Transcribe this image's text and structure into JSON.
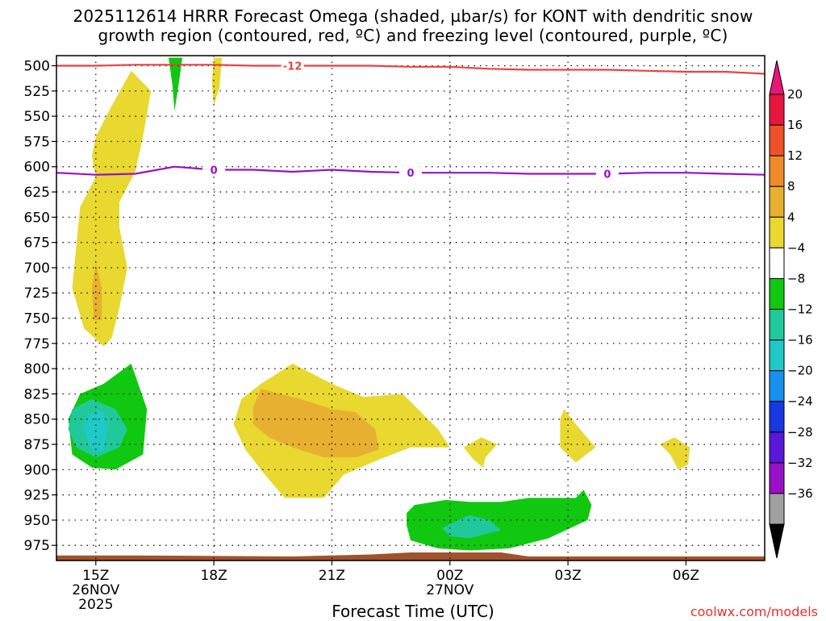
{
  "title_line1": "2025112614 HRRR Forecast Omega (shaded, µbar/s) for KONT with dendritic snow",
  "title_line2": "growth region (contoured, red, ºC) and freezing level (contoured, purple, ºC)",
  "xaxis_title": "Forecast Time (UTC)",
  "credit": "coolwx.com/models",
  "chart_data": {
    "type": "heatmap",
    "y_axis": {
      "label": "",
      "ticks": [
        500,
        525,
        550,
        575,
        600,
        625,
        650,
        675,
        700,
        725,
        750,
        775,
        800,
        825,
        850,
        875,
        900,
        925,
        950,
        975
      ],
      "range": [
        490,
        990
      ]
    },
    "x_axis": {
      "ticks": [
        {
          "hour": 0,
          "lines": [
            "15Z",
            "26NOV",
            "2025"
          ]
        },
        {
          "hour": 3,
          "lines": [
            "18Z"
          ]
        },
        {
          "hour": 6,
          "lines": [
            "21Z"
          ]
        },
        {
          "hour": 9,
          "lines": [
            "00Z",
            "27NOV"
          ]
        },
        {
          "hour": 12,
          "lines": [
            "03Z"
          ]
        },
        {
          "hour": 15,
          "lines": [
            "06Z"
          ]
        }
      ],
      "range": [
        -1.0,
        17.0
      ]
    },
    "colorbar": {
      "levels": [
        "20",
        "16",
        "12",
        "8",
        "4",
        "-4",
        "-8",
        "-12",
        "-16",
        "-20",
        "-24",
        "-28",
        "-32",
        "-36"
      ],
      "colors": [
        "#e8163c",
        "#f05028",
        "#ee8a2a",
        "#e8b030",
        "#e8d830",
        "#ffffff",
        "#10c810",
        "#20c89a",
        "#20c8c8",
        "#1890f0",
        "#1838e0",
        "#5818d8",
        "#9a10c8",
        "#a0a0a0"
      ],
      "top_arrow": "#e8167a",
      "bottom_arrow": "#000000"
    },
    "contour_dgz": {
      "label": "-12",
      "color": "#ee4040",
      "points": [
        [
          -1.0,
          500
        ],
        [
          0,
          500
        ],
        [
          1,
          499
        ],
        [
          2,
          499
        ],
        [
          3,
          499
        ],
        [
          4,
          500
        ],
        [
          5,
          500
        ],
        [
          6,
          500
        ],
        [
          7,
          500
        ],
        [
          8,
          501
        ],
        [
          9,
          501
        ],
        [
          10,
          503
        ],
        [
          11,
          504
        ],
        [
          12,
          504
        ],
        [
          13,
          504
        ],
        [
          14,
          505
        ],
        [
          15,
          506
        ],
        [
          16,
          506
        ],
        [
          17,
          508
        ]
      ]
    },
    "contour_freezing": {
      "label": "0",
      "color": "#9a10c8",
      "points": [
        [
          -1.0,
          606
        ],
        [
          0,
          608
        ],
        [
          1,
          607
        ],
        [
          2,
          600
        ],
        [
          3,
          603
        ],
        [
          4,
          603
        ],
        [
          5,
          605
        ],
        [
          6,
          603
        ],
        [
          7,
          605
        ],
        [
          8,
          606
        ],
        [
          9,
          606
        ],
        [
          10,
          606
        ],
        [
          11,
          607
        ],
        [
          12,
          607
        ],
        [
          13,
          607
        ],
        [
          14,
          606
        ],
        [
          15,
          606
        ],
        [
          16,
          607
        ],
        [
          17,
          608
        ]
      ]
    },
    "shaded_regions": [
      {
        "level": "4 to 8",
        "color": "#e8d830",
        "points": [
          [
            0.2,
            778
          ],
          [
            -0.3,
            760
          ],
          [
            -0.6,
            720
          ],
          [
            -0.5,
            680
          ],
          [
            -0.4,
            640
          ],
          [
            0.0,
            610
          ],
          [
            -0.1,
            590
          ],
          [
            0.0,
            570
          ],
          [
            0.4,
            540
          ],
          [
            0.9,
            505
          ],
          [
            1.4,
            525
          ],
          [
            1.2,
            570
          ],
          [
            1.0,
            605
          ],
          [
            0.6,
            635
          ],
          [
            0.6,
            660
          ],
          [
            0.8,
            700
          ],
          [
            0.6,
            740
          ],
          [
            0.4,
            770
          ]
        ]
      },
      {
        "level": "8 to 12",
        "color": "#e8b030",
        "points": [
          [
            -0.05,
            752
          ],
          [
            -0.1,
            720
          ],
          [
            0.0,
            695
          ],
          [
            0.15,
            720
          ],
          [
            0.15,
            752
          ]
        ]
      },
      {
        "level": "-4 to -8",
        "color": "#10c810",
        "points": [
          [
            -0.6,
            885
          ],
          [
            -0.7,
            850
          ],
          [
            -0.4,
            825
          ],
          [
            0.2,
            815
          ],
          [
            0.9,
            795
          ],
          [
            1.3,
            840
          ],
          [
            1.2,
            885
          ],
          [
            0.5,
            900
          ],
          [
            -0.1,
            898
          ]
        ]
      },
      {
        "level": "-8 to -12",
        "color": "#20c89a",
        "points": [
          [
            -0.7,
            860
          ],
          [
            -0.6,
            840
          ],
          [
            -0.1,
            830
          ],
          [
            0.5,
            840
          ],
          [
            0.8,
            860
          ],
          [
            0.6,
            878
          ],
          [
            0.0,
            888
          ],
          [
            -0.5,
            878
          ]
        ]
      },
      {
        "level": "-12 to -16",
        "color": "#20c8c8",
        "points": [
          [
            -0.1,
            882
          ],
          [
            -0.3,
            860
          ],
          [
            -0.2,
            845
          ],
          [
            0.2,
            842
          ],
          [
            0.3,
            860
          ],
          [
            0.2,
            882
          ]
        ]
      },
      {
        "level": "-4 to -8",
        "color": "#10c810",
        "points": [
          [
            1.85,
            492
          ],
          [
            2.2,
            492
          ],
          [
            2.1,
            520
          ],
          [
            2.0,
            545
          ],
          [
            1.95,
            520
          ]
        ]
      },
      {
        "level": "4 to 8",
        "color": "#e8d830",
        "points": [
          [
            3.0,
            492
          ],
          [
            3.2,
            492
          ],
          [
            3.15,
            520
          ],
          [
            3.0,
            540
          ],
          [
            2.95,
            515
          ]
        ]
      },
      {
        "level": "4 to 8",
        "color": "#e8d830",
        "points": [
          [
            4.2,
            815
          ],
          [
            5.0,
            795
          ],
          [
            6.0,
            815
          ],
          [
            6.8,
            828
          ],
          [
            7.8,
            825
          ],
          [
            8.7,
            860
          ],
          [
            9.0,
            878
          ],
          [
            8.0,
            878
          ],
          [
            7.2,
            890
          ],
          [
            6.3,
            905
          ],
          [
            5.8,
            928
          ],
          [
            4.8,
            928
          ],
          [
            4.3,
            905
          ],
          [
            3.8,
            880
          ],
          [
            3.5,
            855
          ],
          [
            3.7,
            830
          ]
        ]
      },
      {
        "level": "8 to 12",
        "color": "#e8b030",
        "points": [
          [
            4.0,
            838
          ],
          [
            4.2,
            820
          ],
          [
            5.2,
            830
          ],
          [
            6.0,
            840
          ],
          [
            6.6,
            843
          ],
          [
            7.1,
            860
          ],
          [
            7.2,
            880
          ],
          [
            6.6,
            888
          ],
          [
            5.8,
            888
          ],
          [
            5.0,
            878
          ],
          [
            4.4,
            868
          ],
          [
            4.0,
            855
          ]
        ]
      },
      {
        "level": "4 to 8",
        "color": "#e8d830",
        "points": [
          [
            9.35,
            878
          ],
          [
            9.8,
            868
          ],
          [
            10.2,
            875
          ],
          [
            9.9,
            888
          ],
          [
            9.85,
            898
          ],
          [
            9.6,
            890
          ]
        ]
      },
      {
        "level": "4 to 8",
        "color": "#e8d830",
        "points": [
          [
            11.8,
            850
          ],
          [
            11.9,
            840
          ],
          [
            12.2,
            855
          ],
          [
            12.7,
            878
          ],
          [
            12.2,
            893
          ],
          [
            11.8,
            878
          ]
        ]
      },
      {
        "level": "4 to 8",
        "color": "#e8d830",
        "points": [
          [
            14.35,
            875
          ],
          [
            14.7,
            868
          ],
          [
            15.1,
            878
          ],
          [
            15.05,
            895
          ],
          [
            14.8,
            900
          ],
          [
            14.6,
            885
          ]
        ]
      },
      {
        "level": "-4 to -8",
        "color": "#10c810",
        "points": [
          [
            7.9,
            943
          ],
          [
            8.1,
            935
          ],
          [
            8.9,
            930
          ],
          [
            9.5,
            932
          ],
          [
            10.3,
            932
          ],
          [
            11.0,
            928
          ],
          [
            12.2,
            928
          ],
          [
            12.4,
            920
          ],
          [
            12.6,
            935
          ],
          [
            12.5,
            950
          ],
          [
            11.5,
            968
          ],
          [
            10.5,
            978
          ],
          [
            9.5,
            980
          ],
          [
            8.7,
            978
          ],
          [
            8.0,
            970
          ],
          [
            7.9,
            955
          ]
        ]
      },
      {
        "level": "-8 to -12",
        "color": "#20c89a",
        "points": [
          [
            8.8,
            958
          ],
          [
            9.2,
            950
          ],
          [
            9.5,
            945
          ],
          [
            10.0,
            950
          ],
          [
            10.3,
            960
          ],
          [
            9.5,
            968
          ],
          [
            9.0,
            966
          ]
        ]
      }
    ],
    "terrain": {
      "color": "#a0522d",
      "points": [
        [
          -1.0,
          985
        ],
        [
          1.0,
          985
        ],
        [
          5.0,
          986
        ],
        [
          7.0,
          984
        ],
        [
          8.0,
          982
        ],
        [
          9.0,
          982
        ],
        [
          10.3,
          982
        ],
        [
          11.0,
          986
        ],
        [
          17.0,
          986
        ]
      ]
    }
  }
}
